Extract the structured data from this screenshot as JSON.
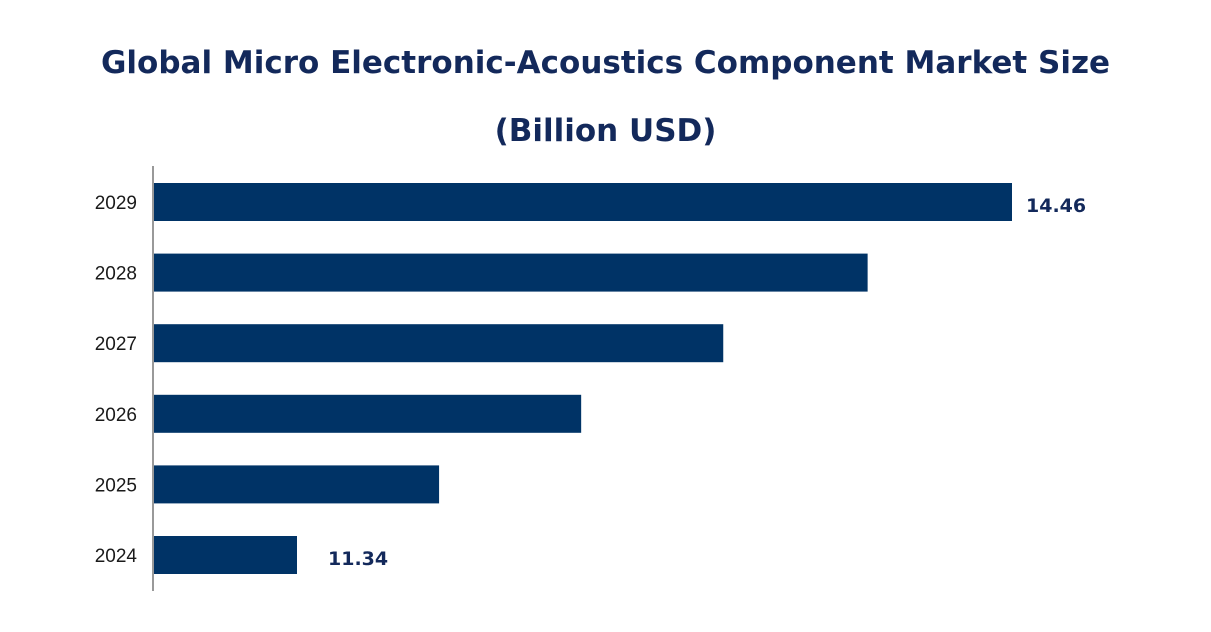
{
  "chart_data": {
    "type": "bar",
    "orientation": "horizontal",
    "title_line1": "Global Micro Electronic-Acoustics Component Market Size",
    "title_line2": "(Billion USD)",
    "categories": [
      "2029",
      "2028",
      "2027",
      "2026",
      "2025",
      "2024"
    ],
    "values": [
      14.46,
      13.83,
      13.2,
      12.58,
      11.96,
      11.34
    ],
    "data_labels": [
      "14.46",
      "",
      "",
      "",
      "",
      "11.34"
    ],
    "xlabel": "",
    "ylabel": "",
    "grid": false,
    "legend": "none",
    "bar_color": "#003366",
    "label_color": "#13295b"
  }
}
